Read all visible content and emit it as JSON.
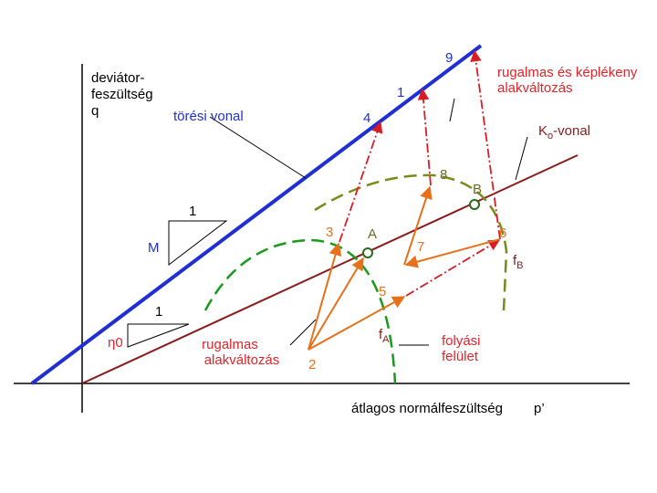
{
  "axes": {
    "y_label": [
      "deviátor-",
      "feszültség",
      "q"
    ],
    "x_label": "átlagos normálfeszültség",
    "x_symbol": "p’"
  },
  "lines": {
    "failure": "törési vonal",
    "k0": {
      "main": "K",
      "sub": "o",
      "rest": "-vonal"
    }
  },
  "slopes": {
    "m": {
      "one": "1",
      "symbol": "M"
    },
    "eta": {
      "one": "1",
      "symbol": "η0"
    }
  },
  "annotations": {
    "elastic_plastic": [
      "rugalmas és képlékeny",
      "alakváltozás"
    ],
    "elastic": [
      "rugalmas",
      "alakváltozás"
    ],
    "yield": [
      "folyási",
      "felület"
    ],
    "fa": {
      "main": "f",
      "sub": "A"
    },
    "fb": {
      "main": "f",
      "sub": "B"
    }
  },
  "points": {
    "p1": "1",
    "p2": "2",
    "p3": "3",
    "p4": "4",
    "p5": "5",
    "p6": "6",
    "p7": "7",
    "p8": "8",
    "p9": "9",
    "a": "A",
    "b": "B"
  }
}
